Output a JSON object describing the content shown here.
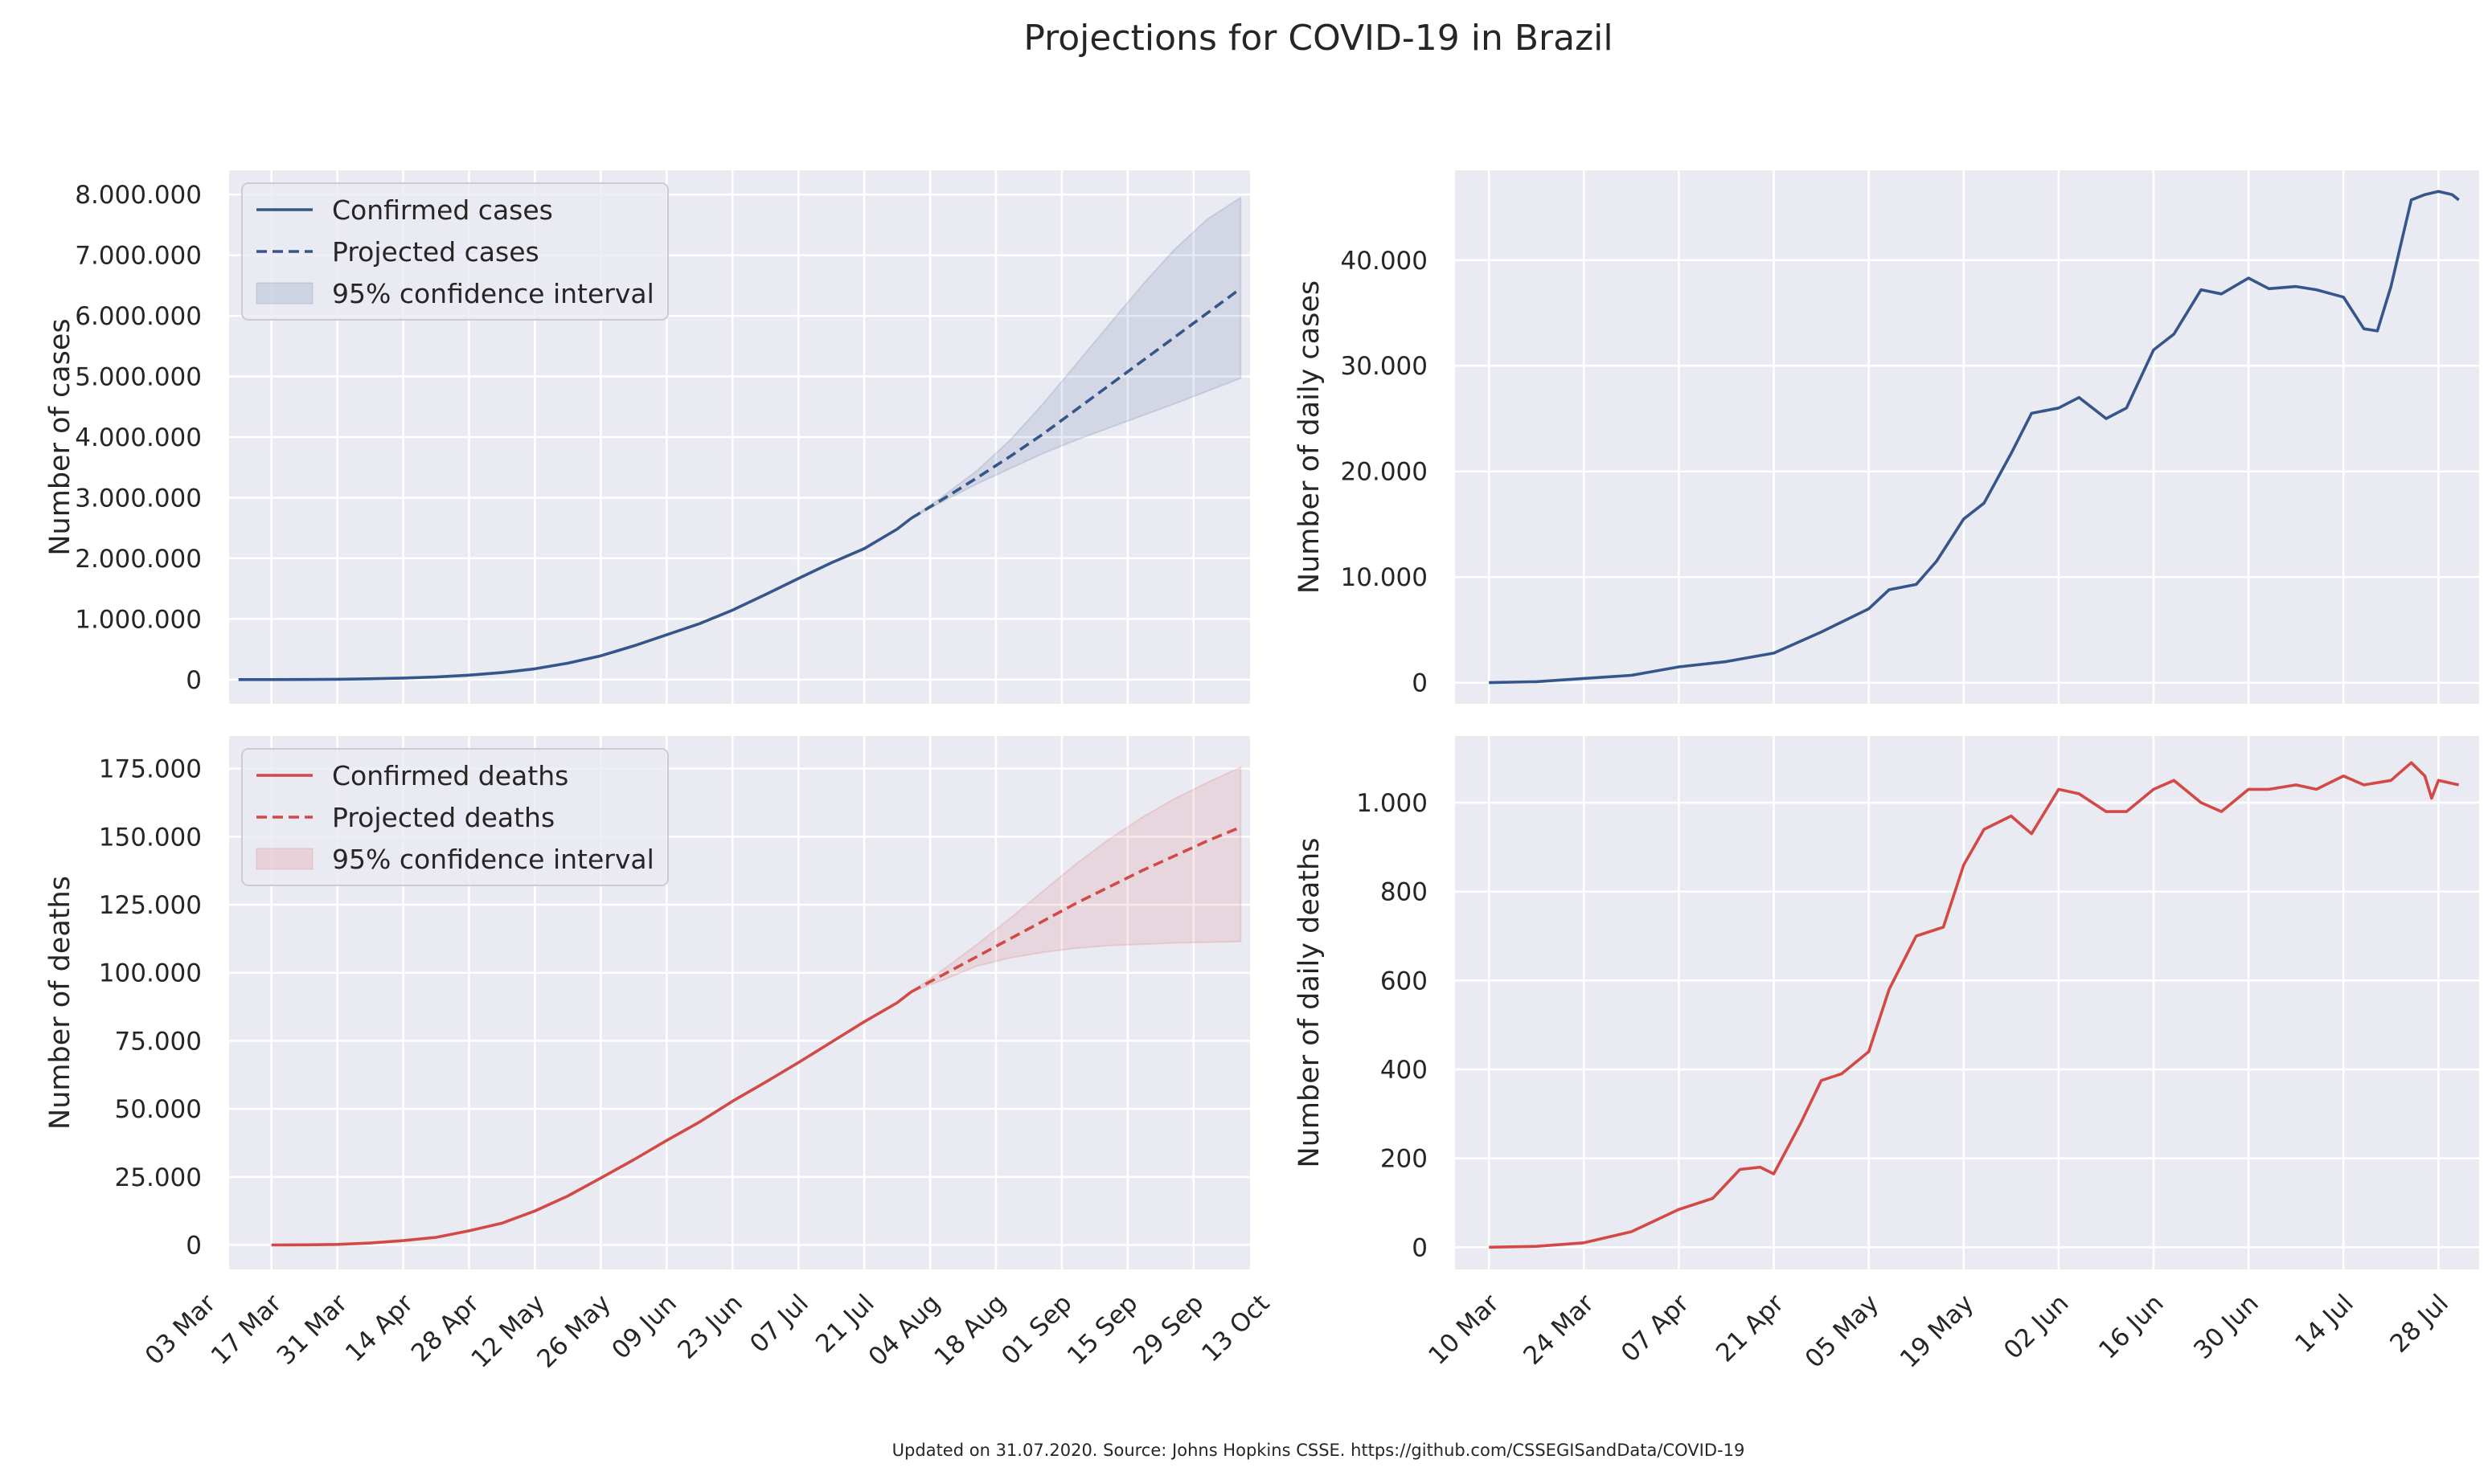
{
  "figure": {
    "title": "Projections for COVID-19 in Brazil",
    "footnote": "Updated on 31.07.2020. Source: Johns Hopkins CSSE. https://github.com/CSSEGISandData/COVID-19"
  },
  "colors": {
    "cases": "#34568B",
    "deaths": "#D24946",
    "panel_bg": "#EAEAF2",
    "grid": "#FFFFFF"
  },
  "chart_data": [
    {
      "id": "cumulative_cases",
      "type": "line",
      "ylabel": "Number of cases",
      "ylim": [
        -400000,
        8400000
      ],
      "xlim": [
        "2020-03-08",
        "2020-10-11"
      ],
      "grid": true,
      "legend_position": "top-left",
      "y_ticks": [
        {
          "value": 0,
          "label": "0"
        },
        {
          "value": 1000000,
          "label": "1.000.000"
        },
        {
          "value": 2000000,
          "label": "2.000.000"
        },
        {
          "value": 3000000,
          "label": "3.000.000"
        },
        {
          "value": 4000000,
          "label": "4.000.000"
        },
        {
          "value": 5000000,
          "label": "5.000.000"
        },
        {
          "value": 6000000,
          "label": "6.000.000"
        },
        {
          "value": 7000000,
          "label": "7.000.000"
        },
        {
          "value": 8000000,
          "label": "8.000.000"
        }
      ],
      "x_ticks": [
        {
          "value": "2020-03-03",
          "label": "03 Mar"
        },
        {
          "value": "2020-03-17",
          "label": "17 Mar"
        },
        {
          "value": "2020-03-31",
          "label": "31 Mar"
        },
        {
          "value": "2020-04-14",
          "label": "14 Apr"
        },
        {
          "value": "2020-04-28",
          "label": "28 Apr"
        },
        {
          "value": "2020-05-12",
          "label": "12 May"
        },
        {
          "value": "2020-05-26",
          "label": "26 May"
        },
        {
          "value": "2020-06-09",
          "label": "09 Jun"
        },
        {
          "value": "2020-06-23",
          "label": "23 Jun"
        },
        {
          "value": "2020-07-07",
          "label": "07 Jul"
        },
        {
          "value": "2020-07-21",
          "label": "21 Jul"
        },
        {
          "value": "2020-08-04",
          "label": "04 Aug"
        },
        {
          "value": "2020-08-18",
          "label": "18 Aug"
        },
        {
          "value": "2020-09-01",
          "label": "01 Sep"
        },
        {
          "value": "2020-09-15",
          "label": "15 Sep"
        },
        {
          "value": "2020-09-29",
          "label": "29 Sep"
        },
        {
          "value": "2020-10-13",
          "label": "13 Oct"
        }
      ],
      "series": [
        {
          "name": "Confirmed cases",
          "style": "solid",
          "x": [
            "2020-03-10",
            "2020-03-17",
            "2020-03-24",
            "2020-03-31",
            "2020-04-07",
            "2020-04-14",
            "2020-04-21",
            "2020-04-28",
            "2020-05-05",
            "2020-05-12",
            "2020-05-19",
            "2020-05-26",
            "2020-06-02",
            "2020-06-09",
            "2020-06-16",
            "2020-06-23",
            "2020-06-30",
            "2020-07-07",
            "2020-07-14",
            "2020-07-21",
            "2020-07-28",
            "2020-07-31"
          ],
          "y": [
            25,
            300,
            2200,
            5700,
            14000,
            25000,
            43000,
            73000,
            115000,
            178000,
            271000,
            392000,
            556000,
            739000,
            923000,
            1145000,
            1403000,
            1668000,
            1926000,
            2160000,
            2483000,
            2662000
          ]
        },
        {
          "name": "Projected cases",
          "style": "dashed",
          "x": [
            "2020-07-31",
            "2020-08-07",
            "2020-08-14",
            "2020-08-21",
            "2020-08-28",
            "2020-09-04",
            "2020-09-11",
            "2020-09-18",
            "2020-09-25",
            "2020-10-02",
            "2020-10-09"
          ],
          "y": [
            2662000,
            2990000,
            3330000,
            3680000,
            4050000,
            4450000,
            4850000,
            5250000,
            5650000,
            6050000,
            6450000
          ]
        },
        {
          "name": "95% confidence interval",
          "style": "band",
          "x": [
            "2020-07-31",
            "2020-08-07",
            "2020-08-14",
            "2020-08-21",
            "2020-08-28",
            "2020-09-04",
            "2020-09-11",
            "2020-09-18",
            "2020-09-25",
            "2020-10-02",
            "2020-10-09"
          ],
          "lower": [
            2662000,
            2950000,
            3230000,
            3480000,
            3730000,
            3950000,
            4150000,
            4350000,
            4550000,
            4760000,
            4970000
          ],
          "upper": [
            2662000,
            3040000,
            3450000,
            3950000,
            4550000,
            5200000,
            5850000,
            6500000,
            7100000,
            7600000,
            7950000
          ]
        }
      ]
    },
    {
      "id": "daily_cases",
      "type": "line",
      "ylabel": "Number of daily cases",
      "ylim": [
        -2000,
        48500
      ],
      "xlim": [
        "2020-03-05",
        "2020-08-03"
      ],
      "grid": true,
      "y_ticks": [
        {
          "value": 0,
          "label": "0"
        },
        {
          "value": 10000,
          "label": "10.000"
        },
        {
          "value": 20000,
          "label": "20.000"
        },
        {
          "value": 30000,
          "label": "30.000"
        },
        {
          "value": 40000,
          "label": "40.000"
        }
      ],
      "x_ticks": [
        {
          "value": "2020-03-10",
          "label": "10 Mar"
        },
        {
          "value": "2020-03-24",
          "label": "24 Mar"
        },
        {
          "value": "2020-04-07",
          "label": "07 Apr"
        },
        {
          "value": "2020-04-21",
          "label": "21 Apr"
        },
        {
          "value": "2020-05-05",
          "label": "05 May"
        },
        {
          "value": "2020-05-19",
          "label": "19 May"
        },
        {
          "value": "2020-06-02",
          "label": "02 Jun"
        },
        {
          "value": "2020-06-16",
          "label": "16 Jun"
        },
        {
          "value": "2020-06-30",
          "label": "30 Jun"
        },
        {
          "value": "2020-07-14",
          "label": "14 Jul"
        },
        {
          "value": "2020-07-28",
          "label": "28 Jul"
        }
      ],
      "series": [
        {
          "name": "",
          "style": "solid",
          "x": [
            "2020-03-10",
            "2020-03-17",
            "2020-03-24",
            "2020-03-31",
            "2020-04-07",
            "2020-04-14",
            "2020-04-21",
            "2020-04-28",
            "2020-05-05",
            "2020-05-08",
            "2020-05-12",
            "2020-05-15",
            "2020-05-19",
            "2020-05-22",
            "2020-05-26",
            "2020-05-29",
            "2020-06-02",
            "2020-06-05",
            "2020-06-09",
            "2020-06-12",
            "2020-06-16",
            "2020-06-19",
            "2020-06-23",
            "2020-06-26",
            "2020-06-30",
            "2020-07-03",
            "2020-07-07",
            "2020-07-10",
            "2020-07-14",
            "2020-07-17",
            "2020-07-19",
            "2020-07-21",
            "2020-07-24",
            "2020-07-26",
            "2020-07-28",
            "2020-07-30",
            "2020-07-31"
          ],
          "y": [
            10,
            100,
            400,
            700,
            1500,
            2000,
            2800,
            4800,
            7000,
            8800,
            9300,
            11500,
            15500,
            17000,
            21700,
            25500,
            26000,
            27000,
            25000,
            26000,
            31500,
            33000,
            37200,
            36800,
            38300,
            37300,
            37500,
            37200,
            36500,
            33500,
            33300,
            37500,
            45700,
            46200,
            46500,
            46200,
            45700
          ]
        }
      ]
    },
    {
      "id": "cumulative_deaths",
      "type": "line",
      "ylabel": "Number of deaths",
      "ylim": [
        -9000,
        187000
      ],
      "xlim": [
        "2020-03-08",
        "2020-10-11"
      ],
      "grid": true,
      "legend_position": "top-left",
      "y_ticks": [
        {
          "value": 0,
          "label": "0"
        },
        {
          "value": 25000,
          "label": "25.000"
        },
        {
          "value": 50000,
          "label": "50.000"
        },
        {
          "value": 75000,
          "label": "75.000"
        },
        {
          "value": 100000,
          "label": "100.000"
        },
        {
          "value": 125000,
          "label": "125.000"
        },
        {
          "value": 150000,
          "label": "150.000"
        },
        {
          "value": 175000,
          "label": "175.000"
        }
      ],
      "x_ticks": [
        {
          "value": "2020-03-03",
          "label": "03 Mar"
        },
        {
          "value": "2020-03-17",
          "label": "17 Mar"
        },
        {
          "value": "2020-03-31",
          "label": "31 Mar"
        },
        {
          "value": "2020-04-14",
          "label": "14 Apr"
        },
        {
          "value": "2020-04-28",
          "label": "28 Apr"
        },
        {
          "value": "2020-05-12",
          "label": "12 May"
        },
        {
          "value": "2020-05-26",
          "label": "26 May"
        },
        {
          "value": "2020-06-09",
          "label": "09 Jun"
        },
        {
          "value": "2020-06-23",
          "label": "23 Jun"
        },
        {
          "value": "2020-07-07",
          "label": "07 Jul"
        },
        {
          "value": "2020-07-21",
          "label": "21 Jul"
        },
        {
          "value": "2020-08-04",
          "label": "04 Aug"
        },
        {
          "value": "2020-08-18",
          "label": "18 Aug"
        },
        {
          "value": "2020-09-01",
          "label": "01 Sep"
        },
        {
          "value": "2020-09-15",
          "label": "15 Sep"
        },
        {
          "value": "2020-09-29",
          "label": "29 Sep"
        },
        {
          "value": "2020-10-13",
          "label": "13 Oct"
        }
      ],
      "series": [
        {
          "name": "Confirmed deaths",
          "style": "solid",
          "x": [
            "2020-03-17",
            "2020-03-24",
            "2020-03-31",
            "2020-04-07",
            "2020-04-14",
            "2020-04-21",
            "2020-04-28",
            "2020-05-05",
            "2020-05-12",
            "2020-05-19",
            "2020-05-26",
            "2020-06-02",
            "2020-06-09",
            "2020-06-16",
            "2020-06-23",
            "2020-06-30",
            "2020-07-07",
            "2020-07-14",
            "2020-07-21",
            "2020-07-28",
            "2020-07-31"
          ],
          "y": [
            1,
            50,
            200,
            700,
            1600,
            2800,
            5200,
            8000,
            12500,
            18000,
            24600,
            31300,
            38400,
            45200,
            52800,
            59800,
            67000,
            74500,
            82000,
            89000,
            93000
          ]
        },
        {
          "name": "Projected deaths",
          "style": "dashed",
          "x": [
            "2020-07-31",
            "2020-08-07",
            "2020-08-14",
            "2020-08-21",
            "2020-08-28",
            "2020-09-04",
            "2020-09-11",
            "2020-09-18",
            "2020-09-25",
            "2020-10-02",
            "2020-10-09"
          ],
          "y": [
            93000,
            99500,
            106000,
            112500,
            119000,
            125500,
            131500,
            137500,
            143000,
            148500,
            153500
          ]
        },
        {
          "name": "95% confidence interval",
          "style": "band",
          "x": [
            "2020-07-31",
            "2020-08-07",
            "2020-08-14",
            "2020-08-21",
            "2020-08-28",
            "2020-09-04",
            "2020-09-11",
            "2020-09-18",
            "2020-09-25",
            "2020-10-02",
            "2020-10-09"
          ],
          "lower": [
            93000,
            97500,
            102500,
            105500,
            107500,
            109000,
            110000,
            110500,
            111000,
            111200,
            111500
          ],
          "upper": [
            93000,
            101500,
            110500,
            120000,
            130000,
            140000,
            149000,
            157000,
            164000,
            170000,
            175500
          ]
        }
      ]
    },
    {
      "id": "daily_deaths",
      "type": "line",
      "ylabel": "Number of daily deaths",
      "ylim": [
        -50,
        1150
      ],
      "xlim": [
        "2020-03-05",
        "2020-08-03"
      ],
      "grid": true,
      "y_ticks": [
        {
          "value": 0,
          "label": "0"
        },
        {
          "value": 200,
          "label": "200"
        },
        {
          "value": 400,
          "label": "400"
        },
        {
          "value": 600,
          "label": "600"
        },
        {
          "value": 800,
          "label": "800"
        },
        {
          "value": 1000,
          "label": "1.000"
        }
      ],
      "x_ticks": [
        {
          "value": "2020-03-10",
          "label": "10 Mar"
        },
        {
          "value": "2020-03-24",
          "label": "24 Mar"
        },
        {
          "value": "2020-04-07",
          "label": "07 Apr"
        },
        {
          "value": "2020-04-21",
          "label": "21 Apr"
        },
        {
          "value": "2020-05-05",
          "label": "05 May"
        },
        {
          "value": "2020-05-19",
          "label": "19 May"
        },
        {
          "value": "2020-06-02",
          "label": "02 Jun"
        },
        {
          "value": "2020-06-16",
          "label": "16 Jun"
        },
        {
          "value": "2020-06-30",
          "label": "30 Jun"
        },
        {
          "value": "2020-07-14",
          "label": "14 Jul"
        },
        {
          "value": "2020-07-28",
          "label": "28 Jul"
        }
      ],
      "series": [
        {
          "name": "",
          "style": "solid",
          "x": [
            "2020-03-10",
            "2020-03-17",
            "2020-03-24",
            "2020-03-31",
            "2020-04-07",
            "2020-04-12",
            "2020-04-16",
            "2020-04-19",
            "2020-04-21",
            "2020-04-25",
            "2020-04-28",
            "2020-05-01",
            "2020-05-05",
            "2020-05-08",
            "2020-05-12",
            "2020-05-16",
            "2020-05-19",
            "2020-05-22",
            "2020-05-26",
            "2020-05-29",
            "2020-06-02",
            "2020-06-05",
            "2020-06-09",
            "2020-06-12",
            "2020-06-16",
            "2020-06-19",
            "2020-06-23",
            "2020-06-26",
            "2020-06-30",
            "2020-07-03",
            "2020-07-07",
            "2020-07-10",
            "2020-07-14",
            "2020-07-17",
            "2020-07-21",
            "2020-07-24",
            "2020-07-26",
            "2020-07-27",
            "2020-07-28",
            "2020-07-31"
          ],
          "y": [
            0,
            2,
            10,
            35,
            85,
            110,
            175,
            180,
            165,
            280,
            375,
            390,
            440,
            580,
            700,
            720,
            860,
            940,
            970,
            930,
            1030,
            1020,
            980,
            980,
            1030,
            1050,
            1000,
            980,
            1030,
            1030,
            1040,
            1030,
            1060,
            1040,
            1050,
            1090,
            1060,
            1010,
            1050,
            1040
          ]
        }
      ]
    }
  ]
}
